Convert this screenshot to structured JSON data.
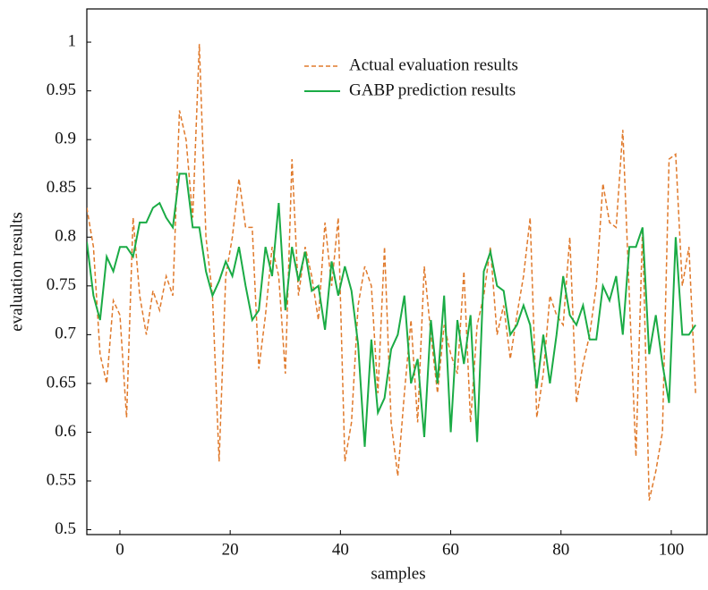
{
  "chart_data": {
    "type": "line",
    "xlabel": "samples",
    "ylabel": "evaluation results",
    "x": [
      -6,
      -4.8,
      -3.6,
      -2.4,
      -1.2,
      0,
      1.2,
      2.4,
      3.6,
      4.8,
      6,
      7.2,
      8.4,
      9.6,
      10.8,
      12,
      13.2,
      14.4,
      15.6,
      16.8,
      18,
      19.2,
      20.4,
      21.6,
      22.8,
      24,
      25.2,
      26.4,
      27.6,
      28.8,
      30,
      31.2,
      32.4,
      33.6,
      34.8,
      36,
      37.2,
      38.4,
      39.6,
      40.8,
      42,
      43.2,
      44.4,
      45.6,
      46.8,
      48,
      49.2,
      50.4,
      51.6,
      52.8,
      54,
      55.2,
      56.4,
      57.6,
      58.8,
      60,
      61.2,
      62.4,
      63.6,
      64.8,
      66,
      67.2,
      68.4,
      69.6,
      70.8,
      72,
      73.2,
      74.4,
      75.6,
      76.8,
      78,
      79.2,
      80.4,
      81.6,
      82.8,
      84,
      85.2,
      86.4,
      87.6,
      88.8,
      90,
      91.2,
      92.4,
      93.6,
      94.8,
      96,
      97.2,
      98.4,
      99.6,
      100.8,
      102,
      103.2,
      104.4
    ],
    "series": [
      {
        "name": "Actual evaluation results",
        "color": "#e07a2c",
        "dash": true,
        "values": [
          0.83,
          0.79,
          0.68,
          0.65,
          0.735,
          0.72,
          0.615,
          0.82,
          0.74,
          0.7,
          0.745,
          0.725,
          0.76,
          0.74,
          0.93,
          0.9,
          0.82,
          0.998,
          0.8,
          0.74,
          0.57,
          0.76,
          0.8,
          0.86,
          0.81,
          0.81,
          0.665,
          0.72,
          0.79,
          0.76,
          0.66,
          0.88,
          0.74,
          0.79,
          0.76,
          0.715,
          0.815,
          0.75,
          0.82,
          0.57,
          0.61,
          0.73,
          0.77,
          0.75,
          0.64,
          0.79,
          0.61,
          0.555,
          0.64,
          0.715,
          0.61,
          0.77,
          0.7,
          0.64,
          0.71,
          0.68,
          0.66,
          0.765,
          0.61,
          0.71,
          0.74,
          0.79,
          0.7,
          0.73,
          0.675,
          0.72,
          0.76,
          0.82,
          0.615,
          0.66,
          0.74,
          0.72,
          0.71,
          0.8,
          0.63,
          0.67,
          0.7,
          0.75,
          0.855,
          0.815,
          0.81,
          0.91,
          0.74,
          0.575,
          0.81,
          0.53,
          0.56,
          0.6,
          0.88,
          0.885,
          0.75,
          0.79,
          0.64
        ]
      },
      {
        "name": "GABP prediction results",
        "color": "#1aab45",
        "dash": false,
        "values": [
          0.795,
          0.74,
          0.715,
          0.78,
          0.765,
          0.79,
          0.79,
          0.78,
          0.815,
          0.815,
          0.83,
          0.835,
          0.82,
          0.81,
          0.865,
          0.865,
          0.81,
          0.81,
          0.765,
          0.74,
          0.755,
          0.775,
          0.76,
          0.79,
          0.75,
          0.715,
          0.725,
          0.79,
          0.76,
          0.835,
          0.725,
          0.79,
          0.755,
          0.785,
          0.745,
          0.75,
          0.705,
          0.775,
          0.74,
          0.77,
          0.745,
          0.69,
          0.585,
          0.695,
          0.62,
          0.635,
          0.685,
          0.7,
          0.74,
          0.65,
          0.675,
          0.595,
          0.715,
          0.65,
          0.74,
          0.6,
          0.715,
          0.67,
          0.72,
          0.59,
          0.765,
          0.785,
          0.75,
          0.745,
          0.7,
          0.71,
          0.73,
          0.71,
          0.645,
          0.7,
          0.65,
          0.7,
          0.76,
          0.72,
          0.71,
          0.73,
          0.695,
          0.695,
          0.75,
          0.735,
          0.76,
          0.7,
          0.79,
          0.79,
          0.81,
          0.68,
          0.72,
          0.67,
          0.63,
          0.8,
          0.7,
          0.7,
          0.71
        ]
      }
    ],
    "xlim": [
      -6,
      106.5
    ],
    "xticks": [
      0,
      20,
      40,
      60,
      80,
      100
    ],
    "ylim": [
      0.495,
      1.034
    ],
    "yticks": [
      0.5,
      0.55,
      0.6,
      0.65,
      0.7,
      0.75,
      0.8,
      0.85,
      0.9,
      0.95,
      1
    ],
    "legend": "top"
  }
}
